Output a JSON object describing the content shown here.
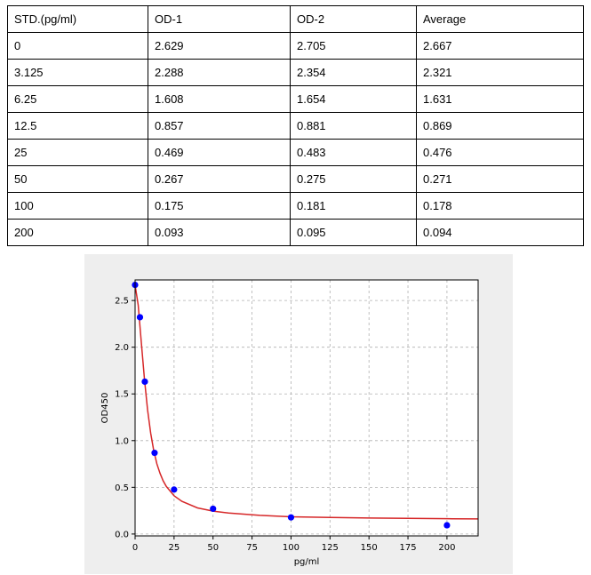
{
  "table": {
    "headers": [
      "STD.(pg/ml)",
      "OD-1",
      "OD-2",
      "Average"
    ],
    "rows": [
      [
        "0",
        "2.629",
        "2.705",
        "2.667"
      ],
      [
        "3.125",
        "2.288",
        "2.354",
        "2.321"
      ],
      [
        "6.25",
        "1.608",
        "1.654",
        "1.631"
      ],
      [
        "12.5",
        "0.857",
        "0.881",
        "0.869"
      ],
      [
        "25",
        "0.469",
        "0.483",
        "0.476"
      ],
      [
        "50",
        "0.267",
        "0.275",
        "0.271"
      ],
      [
        "100",
        "0.175",
        "0.181",
        "0.178"
      ],
      [
        "200",
        "0.093",
        "0.095",
        "0.094"
      ]
    ]
  },
  "chart_data": {
    "type": "scatter",
    "xlabel": "pg/ml",
    "ylabel": "OD450",
    "xlim": [
      0,
      220
    ],
    "ylim": [
      -0.02,
      2.72
    ],
    "xticks": [
      0,
      25,
      50,
      75,
      100,
      125,
      150,
      175,
      200
    ],
    "yticks": [
      0.0,
      0.5,
      1.0,
      1.5,
      2.0,
      2.5
    ],
    "ytick_labels": [
      "0.0",
      "0.5",
      "1.0",
      "1.5",
      "2.0",
      "2.5"
    ],
    "grid": true,
    "series": [
      {
        "kind": "points",
        "color": "#0000ff",
        "x": [
          0,
          3.125,
          6.25,
          12.5,
          25,
          50,
          100,
          200
        ],
        "y": [
          2.667,
          2.321,
          1.631,
          0.869,
          0.476,
          0.271,
          0.178,
          0.094
        ]
      },
      {
        "kind": "fit-curve",
        "color": "#d62728",
        "x": [
          0,
          2,
          4,
          6,
          8,
          10,
          12,
          14,
          16,
          18,
          20,
          25,
          30,
          40,
          50,
          60,
          80,
          100,
          125,
          150,
          175,
          200,
          220
        ],
        "y": [
          2.667,
          2.45,
          2.05,
          1.66,
          1.33,
          1.08,
          0.89,
          0.75,
          0.65,
          0.57,
          0.51,
          0.41,
          0.35,
          0.28,
          0.245,
          0.225,
          0.2,
          0.185,
          0.178,
          0.172,
          0.168,
          0.164,
          0.162
        ]
      }
    ]
  }
}
